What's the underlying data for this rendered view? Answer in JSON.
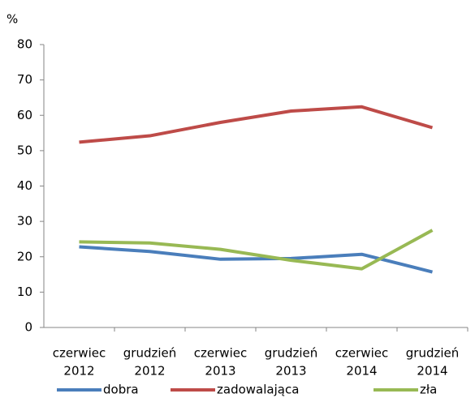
{
  "chart_data": {
    "type": "line",
    "y_label": "%",
    "categories": [
      [
        "czerwiec",
        "2012"
      ],
      [
        "grudzień",
        "2012"
      ],
      [
        "czerwiec",
        "2013"
      ],
      [
        "grudzień",
        "2013"
      ],
      [
        "czerwiec",
        "2014"
      ],
      [
        "grudzień",
        "2014"
      ]
    ],
    "series": [
      {
        "name": "dobra",
        "color": "#4a7ebb",
        "values": [
          22.8,
          21.5,
          19.3,
          19.5,
          20.7,
          15.7
        ]
      },
      {
        "name": "zadowalająca",
        "color": "#be4b48",
        "values": [
          52.4,
          54.2,
          58,
          61.2,
          62.4,
          56.5
        ]
      },
      {
        "name": "zła",
        "color": "#98b954",
        "values": [
          24.2,
          23.9,
          22.1,
          19,
          16.6,
          27.5
        ]
      }
    ],
    "ylim": [
      0,
      80
    ],
    "yticks": [
      0,
      10,
      20,
      30,
      40,
      50,
      60,
      70,
      80
    ],
    "grid": false,
    "legend": "bottom"
  }
}
